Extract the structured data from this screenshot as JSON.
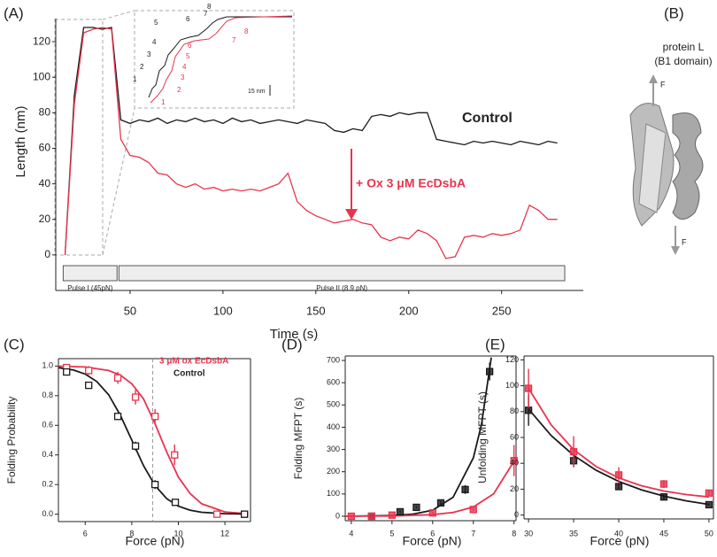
{
  "chart_data": [
    {
      "type": "line",
      "panel_label": "(A)",
      "xlabel": "Time (s)",
      "ylabel": "Length (nm)",
      "x": [
        15,
        20,
        25,
        30,
        35,
        40,
        45,
        50,
        55,
        60,
        65,
        70,
        75,
        80,
        85,
        90,
        95,
        100,
        105,
        110,
        115,
        120,
        125,
        130,
        135,
        140,
        145,
        150,
        155,
        160,
        165,
        170,
        175,
        180,
        185,
        190,
        195,
        200,
        205,
        210,
        215,
        220,
        225,
        230,
        235,
        240,
        245,
        250,
        255,
        260,
        265,
        270,
        275,
        280
      ],
      "series": [
        {
          "name": "Control",
          "color": "#1a1a1a",
          "values": [
            0,
            90,
            128,
            128,
            127,
            128,
            76,
            74,
            76,
            75,
            77,
            74,
            76,
            75,
            77,
            75,
            76,
            74,
            77,
            75,
            76,
            74,
            75,
            76,
            75,
            74,
            76,
            75,
            74,
            70,
            69,
            71,
            70,
            78,
            79,
            78,
            80,
            79,
            80,
            80,
            65,
            64,
            63,
            62,
            64,
            63,
            64,
            63,
            62,
            64,
            63,
            62,
            64,
            63
          ]
        },
        {
          "name": "+ Ox 3 μM EcDsbA",
          "color": "#e8344e",
          "values": [
            0,
            85,
            125,
            127,
            128,
            127,
            65,
            56,
            55,
            52,
            46,
            45,
            40,
            38,
            40,
            37,
            38,
            36,
            37,
            36,
            37,
            36,
            38,
            40,
            46,
            30,
            25,
            22,
            20,
            18,
            19,
            20,
            18,
            17,
            10,
            8,
            10,
            9,
            14,
            12,
            8,
            -2,
            -1,
            10,
            11,
            10,
            12,
            11,
            12,
            14,
            28,
            25,
            20,
            20
          ]
        }
      ],
      "pulses": [
        {
          "label": "Pulse I (45pN)",
          "start": 14,
          "end": 43
        },
        {
          "label": "Pulse II (8.9 pN)",
          "start": 44,
          "end": 284
        }
      ],
      "inset": {
        "black_labels": [
          "1",
          "2",
          "3",
          "4",
          "5",
          "6",
          "7",
          "8"
        ],
        "red_labels": [
          "1",
          "2",
          "3",
          "4",
          "5",
          "6",
          "7",
          "8"
        ],
        "scale": "15 nm"
      },
      "xlim": [
        10,
        294
      ],
      "xticks": [
        50,
        100,
        150,
        200,
        250
      ],
      "ylim": [
        -20,
        133
      ],
      "yticks": [
        0,
        20,
        40,
        60,
        80,
        100,
        120
      ]
    },
    {
      "type": "scatter",
      "panel_label": "(C)",
      "xlabel": "Force (pN)",
      "ylabel": "Folding Probability",
      "series": [
        {
          "name": "3 μM ox EcDsbA",
          "color": "#e8344e",
          "x": [
            5.2,
            6.15,
            7.4,
            8.16,
            9.0,
            9.84,
            11.66,
            12.84
          ],
          "values": [
            0.99,
            0.97,
            0.92,
            0.79,
            0.66,
            0.4,
            0.0,
            0.0
          ],
          "errors": [
            0.02,
            0.03,
            0.04,
            0.05,
            0.05,
            0.07,
            0.01,
            0.01
          ]
        },
        {
          "name": "Control",
          "color": "#1a1a1a",
          "x": [
            5.2,
            6.15,
            7.4,
            8.16,
            9.0,
            9.87,
            12.84
          ],
          "values": [
            0.96,
            0.87,
            0.66,
            0.46,
            0.2,
            0.08,
            0.0
          ],
          "errors": [
            0.02,
            0.02,
            0.02,
            0.03,
            0.03,
            0.02,
            0.01
          ]
        }
      ],
      "fits": [
        {
          "color": "#e8344e",
          "x": [
            4.85,
            6,
            7,
            7.5,
            8,
            8.5,
            9,
            9.5,
            10,
            10.5,
            11,
            12,
            13
          ],
          "values": [
            0.999,
            0.994,
            0.97,
            0.94,
            0.88,
            0.78,
            0.61,
            0.42,
            0.25,
            0.14,
            0.07,
            0.015,
            0.003
          ]
        },
        {
          "color": "#1a1a1a",
          "x": [
            4.85,
            5.5,
            6,
            6.5,
            7,
            7.5,
            8,
            8.5,
            9,
            9.5,
            10,
            10.5,
            11,
            12,
            13
          ],
          "values": [
            0.989,
            0.973,
            0.946,
            0.895,
            0.807,
            0.671,
            0.5,
            0.329,
            0.193,
            0.105,
            0.054,
            0.027,
            0.013,
            0.003,
            0.001
          ]
        }
      ],
      "vline": 8.9,
      "xlim": [
        4.85,
        13.1
      ],
      "xticks": [
        6,
        8,
        10,
        12
      ],
      "ylim": [
        -0.05,
        1.05
      ],
      "yticks": [
        {
          "value": 0,
          "label": "0.0"
        },
        0.2,
        0.4,
        0.6,
        0.8,
        {
          "value": 1,
          "label": "1.0"
        }
      ]
    },
    {
      "type": "scatter",
      "panel_label": "(D)",
      "xlabel": "Force (pN)",
      "ylabel": "Folding MFPT (s)",
      "series": [
        {
          "color": "#1a1a1a",
          "x": [
            4.5,
            5.2,
            5.6,
            6.2,
            6.8,
            7.4
          ],
          "values": [
            0,
            20,
            40,
            60,
            120,
            650
          ],
          "errors": [
            5,
            5,
            5,
            8,
            20,
            40
          ]
        },
        {
          "color": "#e8344e",
          "x": [
            4,
            4.5,
            5,
            6,
            7,
            8
          ],
          "values": [
            0,
            0,
            5,
            15,
            30,
            250
          ],
          "errors": [
            3,
            3,
            3,
            4,
            5,
            70
          ]
        }
      ],
      "fits": [
        {
          "color": "#1a1a1a",
          "x": [
            3.85,
            4,
            5,
            5.5,
            6,
            6.5,
            7,
            7.2,
            7.44
          ],
          "values": [
            0.2,
            0.3,
            2.9,
            8.9,
            27.4,
            85,
            263,
            412,
            713
          ]
        },
        {
          "color": "#e8344e",
          "x": [
            3.85,
            4,
            5,
            6,
            6.5,
            7,
            7.5,
            8
          ],
          "values": [
            0.15,
            0.2,
            1.2,
            7,
            17,
            41.8,
            101,
            247
          ]
        }
      ],
      "xlim": [
        3.85,
        8.05
      ],
      "xticks": [
        4,
        5,
        6,
        7,
        8
      ],
      "ylim": [
        -20,
        720
      ],
      "yticks": [
        0,
        100,
        200,
        300,
        400,
        500,
        600,
        700
      ]
    },
    {
      "type": "scatter",
      "panel_label": "(E)",
      "xlabel": "Force (pN)",
      "ylabel": "Unfolding MFPT (s)",
      "series": [
        {
          "color": "#1a1a1a",
          "x": [
            30,
            35,
            40,
            45,
            50
          ],
          "values": [
            81,
            42,
            22,
            14,
            8
          ],
          "errors": [
            12,
            5,
            2,
            2,
            1
          ]
        },
        {
          "color": "#e8344e",
          "x": [
            30,
            35,
            40,
            45,
            50
          ],
          "values": [
            98,
            49,
            31,
            24,
            17
          ],
          "errors": [
            15,
            12,
            6,
            3,
            2
          ]
        }
      ],
      "fits": [
        {
          "color": "#1a1a1a",
          "x": [
            30,
            32.5,
            35,
            37.5,
            40,
            42.5,
            45,
            47.5,
            50
          ],
          "values": [
            82,
            61.5,
            46.2,
            34.6,
            26,
            19.5,
            14.6,
            11,
            8.2
          ]
        },
        {
          "color": "#e8344e",
          "x": [
            30,
            32.5,
            35,
            37.5,
            40,
            42.5,
            45,
            47.5,
            50
          ],
          "values": [
            98,
            69.8,
            50.6,
            37.5,
            28.7,
            22.7,
            18.6,
            15.8,
            14
          ]
        }
      ],
      "xlim": [
        29.5,
        50.5
      ],
      "xticks": [
        30,
        35,
        40,
        45,
        50
      ],
      "ylim": [
        -3,
        123
      ],
      "yticks": [
        0,
        20,
        40,
        60,
        80,
        100,
        120
      ]
    }
  ],
  "panel_b": {
    "label": "(B)",
    "title": "protein L",
    "subtitle": "(B1 domain)",
    "force_top": "F",
    "force_bottom": "F"
  }
}
